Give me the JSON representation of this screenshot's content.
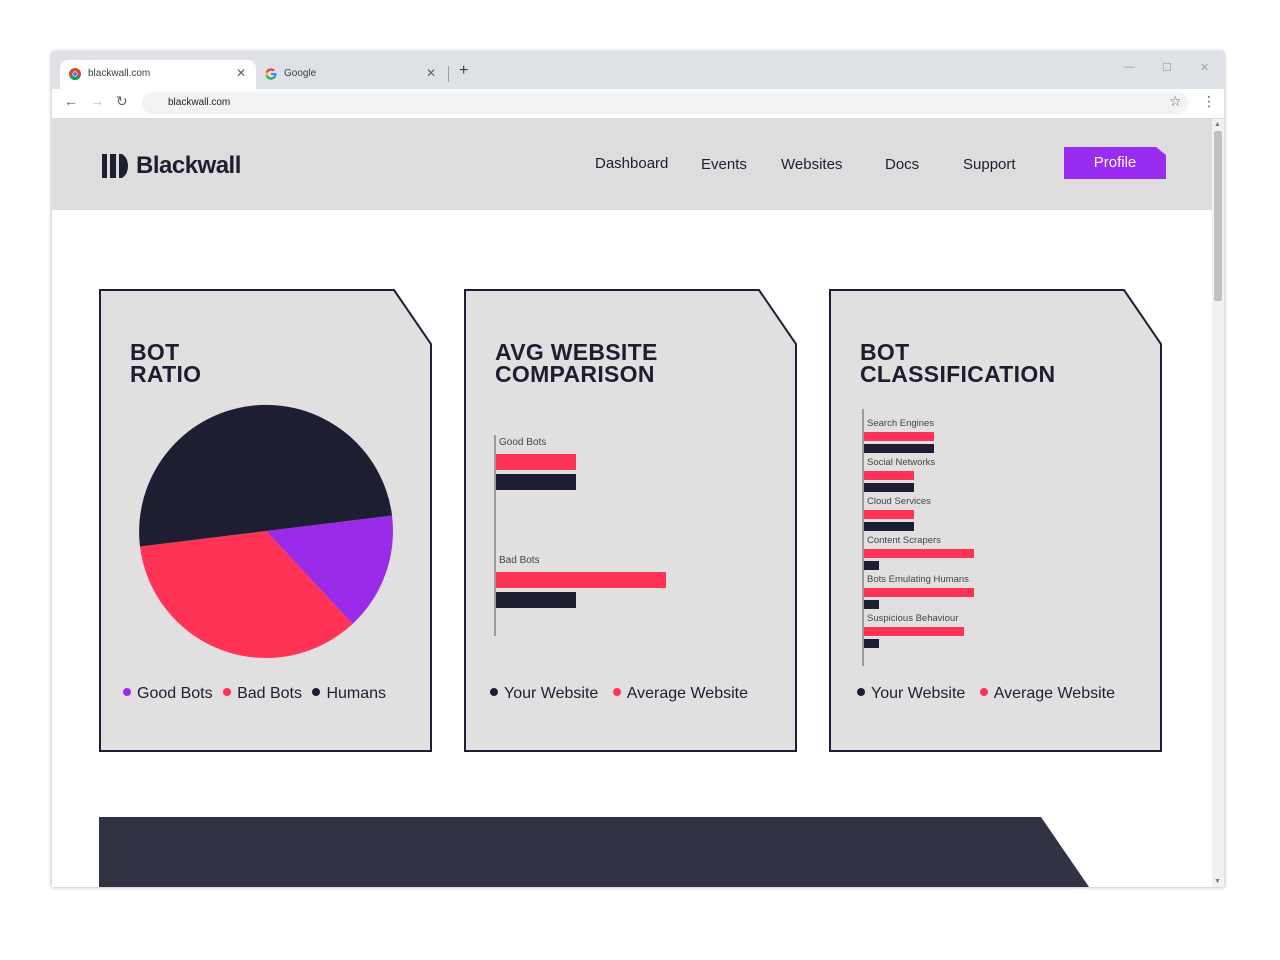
{
  "browser": {
    "tabs": [
      {
        "title": "blackwall.com",
        "active": true
      },
      {
        "title": "Google",
        "active": false
      }
    ],
    "url": "blackwall.com"
  },
  "site": {
    "brand": "Blackwall",
    "nav": [
      "Dashboard",
      "Events",
      "Websites",
      "Docs",
      "Support"
    ],
    "profile_label": "Profile"
  },
  "colors": {
    "purple": "#9a2be8",
    "red": "#ff3355",
    "navy": "#1e1e33",
    "card_bg": "#e1dfdf"
  },
  "cards": {
    "bot_ratio": {
      "title_line1": "BOT",
      "title_line2": "RATIO",
      "legend": [
        "Good Bots",
        "Bad Bots",
        "Humans"
      ]
    },
    "avg_comparison": {
      "title_line1": "AVG WEBSITE",
      "title_line2": "COMPARISON",
      "legend": [
        "Your Website",
        "Average Website"
      ]
    },
    "bot_classification": {
      "title_line1": "BOT",
      "title_line2": "CLASSIFICATION",
      "legend": [
        "Your Website",
        "Average Website"
      ]
    }
  },
  "chart_data": [
    {
      "type": "pie",
      "labels": [
        "Good Bots",
        "Bad Bots",
        "Humans"
      ],
      "values": [
        15,
        35,
        50
      ],
      "colors": [
        "#9a2be8",
        "#ff3355",
        "#1e1e33"
      ]
    },
    {
      "type": "bar",
      "orientation": "horizontal",
      "categories": [
        "Good Bots",
        "Bad Bots"
      ],
      "series": [
        {
          "name": "Your Website",
          "values": [
            8,
            8
          ],
          "color": "#1e1e33"
        },
        {
          "name": "Average Website",
          "values": [
            8,
            17
          ],
          "color": "#ff3355"
        }
      ],
      "xlim": [
        0,
        20
      ]
    },
    {
      "type": "bar",
      "orientation": "horizontal",
      "categories": [
        "Search Engines",
        "Social Networks",
        "Cloud Services",
        "Content Scrapers",
        "Bots Emulating Humans",
        "Suspicious Behaviour"
      ],
      "series": [
        {
          "name": "Your Website",
          "values": [
            7,
            5,
            5,
            1.5,
            1.5,
            1.5
          ],
          "color": "#1e1e33"
        },
        {
          "name": "Average Website",
          "values": [
            7,
            5,
            5,
            11,
            11,
            10
          ],
          "color": "#ff3355"
        }
      ],
      "xlim": [
        0,
        20
      ]
    }
  ]
}
